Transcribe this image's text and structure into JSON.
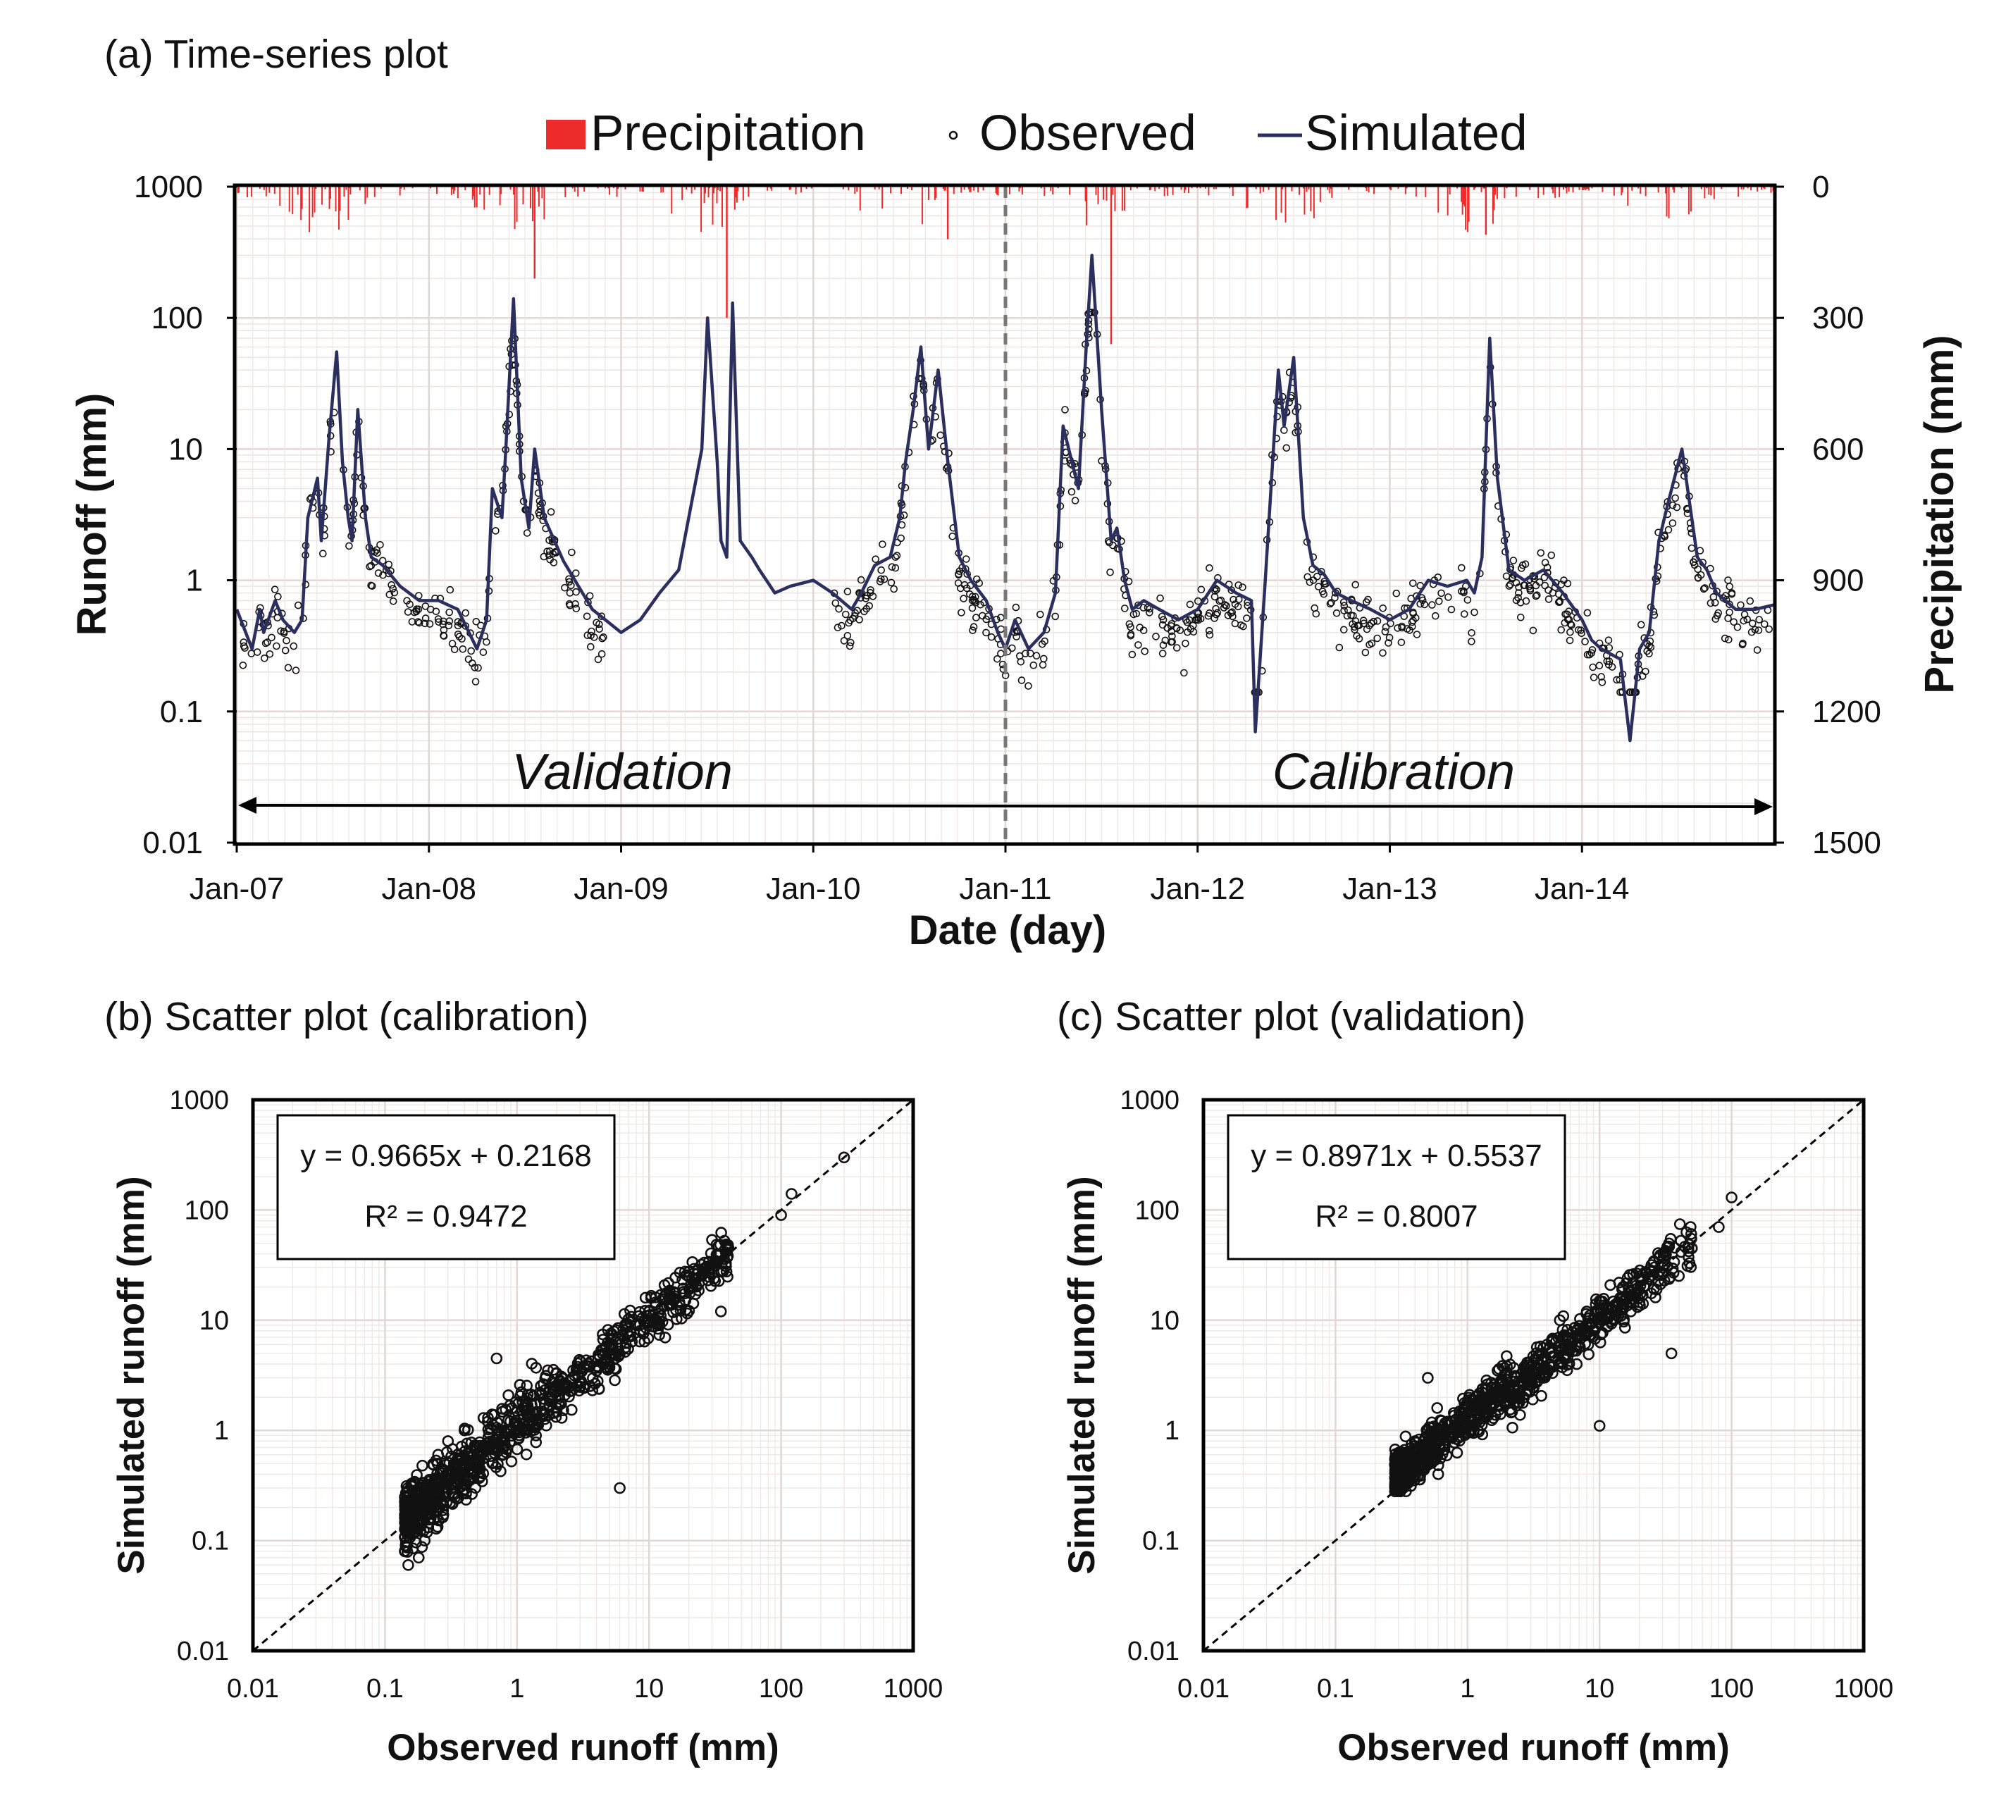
{
  "panels": {
    "a_title": "(a) Time-series plot",
    "b_title": "(b) Scatter plot (calibration)",
    "c_title": "(c) Scatter plot (validation)"
  },
  "timeseries": {
    "legend": {
      "precip": "Precipitation",
      "observed": "Observed",
      "simulated": "Simulated"
    },
    "ylabel": "Runoff (mm)",
    "y2label": "Precipitation (mm)",
    "xlabel": "Date (day)",
    "yticks": [
      "0.01",
      "0.1",
      "1",
      "10",
      "100",
      "1000"
    ],
    "y2ticks": [
      "1500",
      "1200",
      "900",
      "600",
      "300",
      "0"
    ],
    "xticks": [
      "Jan-07",
      "Jan-08",
      "Jan-09",
      "Jan-10",
      "Jan-11",
      "Jan-12",
      "Jan-13",
      "Jan-14"
    ],
    "validation_label": "Validation",
    "calibration_label": "Calibration"
  },
  "scatter_cal": {
    "equation": "y = 0.9665x  + 0.2168",
    "r2": "R² = 0.9472",
    "xlabel": "Observed runoff (mm)",
    "ylabel": "Simulated runoff (mm)",
    "ticks": [
      "0.01",
      "0.1",
      "1",
      "10",
      "100",
      "1000"
    ]
  },
  "scatter_val": {
    "equation": "y = 0.8971x  + 0.5537",
    "r2": "R² = 0.8007",
    "xlabel": "Observed runoff (mm)",
    "ylabel": "Simulated runoff (mm)",
    "ticks": [
      "0.01",
      "0.1",
      "1",
      "10",
      "100",
      "1000"
    ]
  },
  "colors": {
    "precip": "#ee2b2b",
    "simulated": "#2b2f5e",
    "observed": "#111111",
    "grid": "#e2d6d6",
    "axis": "#000000"
  },
  "chart_data": [
    {
      "type": "line",
      "title": "(a) Time-series plot",
      "xlabel": "Date (day)",
      "ylabel": "Runoff (mm)",
      "y2label": "Precipitation (mm)",
      "yscale": "log",
      "ylim": [
        0.01,
        1000
      ],
      "y2lim": [
        1500,
        0
      ],
      "xlim": [
        2007.0,
        2015.0
      ],
      "split_year": 2011.0,
      "series": [
        {
          "name": "Simulated",
          "kind": "line",
          "x": [
            2007.0,
            2007.08,
            2007.12,
            2007.14,
            2007.2,
            2007.24,
            2007.3,
            2007.34,
            2007.37,
            2007.42,
            2007.44,
            2007.48,
            2007.52,
            2007.55,
            2007.58,
            2007.6,
            2007.63,
            2007.67,
            2007.7,
            2007.76,
            2007.85,
            2007.95,
            2008.05,
            2008.15,
            2008.25,
            2008.3,
            2008.33,
            2008.38,
            2008.4,
            2008.44,
            2008.48,
            2008.52,
            2008.55,
            2008.6,
            2008.7,
            2008.85,
            2009.0,
            2009.1,
            2009.2,
            2009.3,
            2009.42,
            2009.45,
            2009.5,
            2009.52,
            2009.55,
            2009.58,
            2009.62,
            2009.68,
            2009.72,
            2009.8,
            2009.88,
            2010.0,
            2010.1,
            2010.2,
            2010.25,
            2010.32,
            2010.4,
            2010.45,
            2010.48,
            2010.52,
            2010.56,
            2010.6,
            2010.65,
            2010.7,
            2010.76,
            2010.82,
            2010.9,
            2010.96,
            2011.0,
            2011.05,
            2011.12,
            2011.2,
            2011.26,
            2011.3,
            2011.38,
            2011.42,
            2011.45,
            2011.5,
            2011.53,
            2011.55,
            2011.58,
            2011.62,
            2011.66,
            2011.72,
            2011.8,
            2011.9,
            2012.0,
            2012.1,
            2012.2,
            2012.28,
            2012.3,
            2012.35,
            2012.42,
            2012.45,
            2012.5,
            2012.55,
            2012.6,
            2012.66,
            2012.72,
            2012.8,
            2012.9,
            2013.0,
            2013.1,
            2013.2,
            2013.3,
            2013.4,
            2013.44,
            2013.48,
            2013.52,
            2013.56,
            2013.62,
            2013.7,
            2013.8,
            2013.9,
            2014.0,
            2014.05,
            2014.1,
            2014.2,
            2014.25,
            2014.3,
            2014.35,
            2014.4,
            2014.45,
            2014.52,
            2014.6,
            2014.65,
            2014.7,
            2014.8,
            2014.9,
            2015.0
          ],
          "values": [
            0.6,
            0.3,
            0.6,
            0.4,
            0.7,
            0.5,
            0.4,
            0.5,
            3.0,
            6.0,
            2.0,
            12,
            55,
            8,
            3,
            2.0,
            20,
            3,
            1.5,
            1.3,
            0.9,
            0.7,
            0.7,
            0.6,
            0.3,
            0.5,
            5,
            3,
            10,
            140,
            6,
            2.5,
            10,
            3,
            1.4,
            0.6,
            0.4,
            0.5,
            0.8,
            1.2,
            10,
            100,
            8,
            2,
            1.5,
            130,
            2,
            1.5,
            1.2,
            0.8,
            0.9,
            1.0,
            0.8,
            0.6,
            0.8,
            1.3,
            1.5,
            3,
            8,
            20,
            60,
            10,
            40,
            8,
            1.5,
            1.0,
            0.7,
            0.4,
            0.3,
            0.5,
            0.3,
            0.4,
            0.8,
            15,
            5,
            60,
            300,
            20,
            5,
            2,
            2.5,
            1.0,
            0.6,
            0.7,
            0.6,
            0.5,
            0.6,
            1.0,
            0.8,
            0.7,
            0.07,
            0.9,
            40,
            15,
            50,
            3,
            1.3,
            1.1,
            0.8,
            0.7,
            0.6,
            0.5,
            0.6,
            1.0,
            0.9,
            1.0,
            0.8,
            1.5,
            70,
            6,
            1.2,
            1.0,
            1.2,
            0.8,
            0.5,
            0.35,
            0.3,
            0.25,
            0.06,
            0.3,
            0.4,
            2,
            4,
            10,
            1.5,
            1.2,
            0.8,
            0.6,
            0.6,
            0.65
          ]
        },
        {
          "name": "Observed",
          "kind": "points",
          "note": "open circles following the simulated series; peaks reach ~100 mm, baseflow 0.15–1 mm"
        },
        {
          "name": "Precipitation",
          "kind": "bars",
          "axis": "y2",
          "note": "daily bars hanging from top; max ~350 mm in 2011, ~300 mm in 2009"
        }
      ],
      "annotations": [
        "Validation",
        "Calibration"
      ]
    },
    {
      "type": "scatter",
      "title": "(b) Scatter plot (calibration)",
      "xlabel": "Observed runoff (mm)",
      "ylabel": "Simulated runoff (mm)",
      "xscale": "log",
      "yscale": "log",
      "xlim": [
        0.01,
        1000
      ],
      "ylim": [
        0.01,
        1000
      ],
      "fit": {
        "slope": 0.9665,
        "intercept": 0.2168,
        "r2": 0.9472
      },
      "reference": "1:1 line",
      "points": [
        [
          0.15,
          0.06
        ],
        [
          0.18,
          0.07
        ],
        [
          0.2,
          0.1
        ],
        [
          0.22,
          0.3
        ],
        [
          0.25,
          0.5
        ],
        [
          0.3,
          0.8
        ],
        [
          0.4,
          1.0
        ],
        [
          0.5,
          0.7
        ],
        [
          0.6,
          1.2
        ],
        [
          0.8,
          1.0
        ],
        [
          1.0,
          1.5
        ],
        [
          1.5,
          1.3
        ],
        [
          2.0,
          1.6
        ],
        [
          3.0,
          2.5
        ],
        [
          5,
          4
        ],
        [
          8,
          9
        ],
        [
          10,
          12
        ],
        [
          15,
          14
        ],
        [
          20,
          25
        ],
        [
          30,
          30
        ],
        [
          40,
          45
        ],
        [
          100,
          90
        ],
        [
          120,
          140
        ],
        [
          300,
          300
        ],
        [
          6,
          0.3
        ],
        [
          35,
          12
        ],
        [
          0.7,
          4.5
        ]
      ]
    },
    {
      "type": "scatter",
      "title": "(c) Scatter plot (validation)",
      "xlabel": "Observed runoff (mm)",
      "ylabel": "Simulated runoff (mm)",
      "xscale": "log",
      "yscale": "log",
      "xlim": [
        0.01,
        1000
      ],
      "ylim": [
        0.01,
        1000
      ],
      "fit": {
        "slope": 0.8971,
        "intercept": 0.5537,
        "r2": 0.8007
      },
      "reference": "1:1 line",
      "points": [
        [
          0.3,
          0.3
        ],
        [
          0.3,
          0.6
        ],
        [
          0.4,
          0.8
        ],
        [
          0.5,
          1.0
        ],
        [
          0.6,
          0.4
        ],
        [
          0.7,
          1.2
        ],
        [
          1.0,
          1.4
        ],
        [
          1.5,
          1.6
        ],
        [
          2.0,
          1.8
        ],
        [
          3,
          3
        ],
        [
          4,
          6
        ],
        [
          5,
          10
        ],
        [
          8,
          12
        ],
        [
          10,
          15
        ],
        [
          15,
          20
        ],
        [
          20,
          25
        ],
        [
          30,
          30
        ],
        [
          50,
          45
        ],
        [
          80,
          70
        ],
        [
          100,
          130
        ],
        [
          35,
          5
        ],
        [
          10,
          1.1
        ],
        [
          0.5,
          3.0
        ]
      ]
    }
  ]
}
